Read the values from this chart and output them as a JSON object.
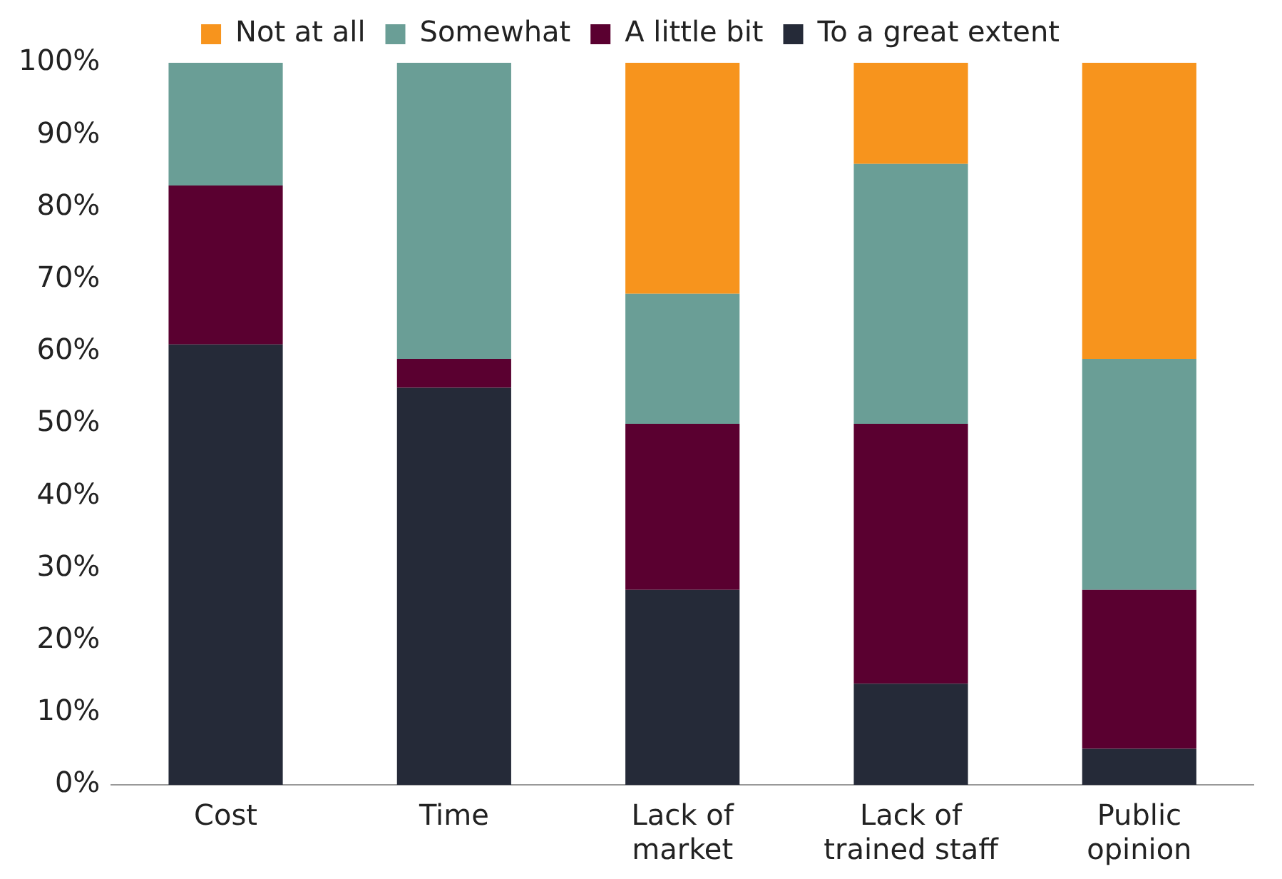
{
  "chart_data": {
    "type": "bar",
    "stacked": true,
    "categories": [
      "Cost",
      "Time",
      "Lack of market",
      "Lack of trained staff",
      "Public opinion"
    ],
    "series": [
      {
        "name": "To a great extent",
        "color": "#252a38",
        "values": [
          61,
          55,
          27,
          14,
          5
        ]
      },
      {
        "name": "A little bit",
        "color": "#5a0030",
        "values": [
          22,
          4,
          23,
          36,
          22
        ]
      },
      {
        "name": "Somewhat",
        "color": "#6a9e96",
        "values": [
          17,
          41,
          18,
          36,
          32
        ]
      },
      {
        "name": "Not at all",
        "color": "#f7941d",
        "values": [
          0,
          0,
          32,
          14,
          41
        ]
      }
    ],
    "ylim": [
      0,
      100
    ],
    "yticks": [
      {
        "value": 0,
        "label": "0%"
      },
      {
        "value": 10,
        "label": "10%"
      },
      {
        "value": 20,
        "label": "20%"
      },
      {
        "value": 30,
        "label": "30%"
      },
      {
        "value": 40,
        "label": "40%"
      },
      {
        "value": 50,
        "label": "50%"
      },
      {
        "value": 60,
        "label": "60%"
      },
      {
        "value": 70,
        "label": "70%"
      },
      {
        "value": 80,
        "label": "80%"
      },
      {
        "value": 90,
        "label": "90%"
      },
      {
        "value": 100,
        "label": "100%"
      }
    ],
    "grid": false,
    "legend": "top"
  }
}
